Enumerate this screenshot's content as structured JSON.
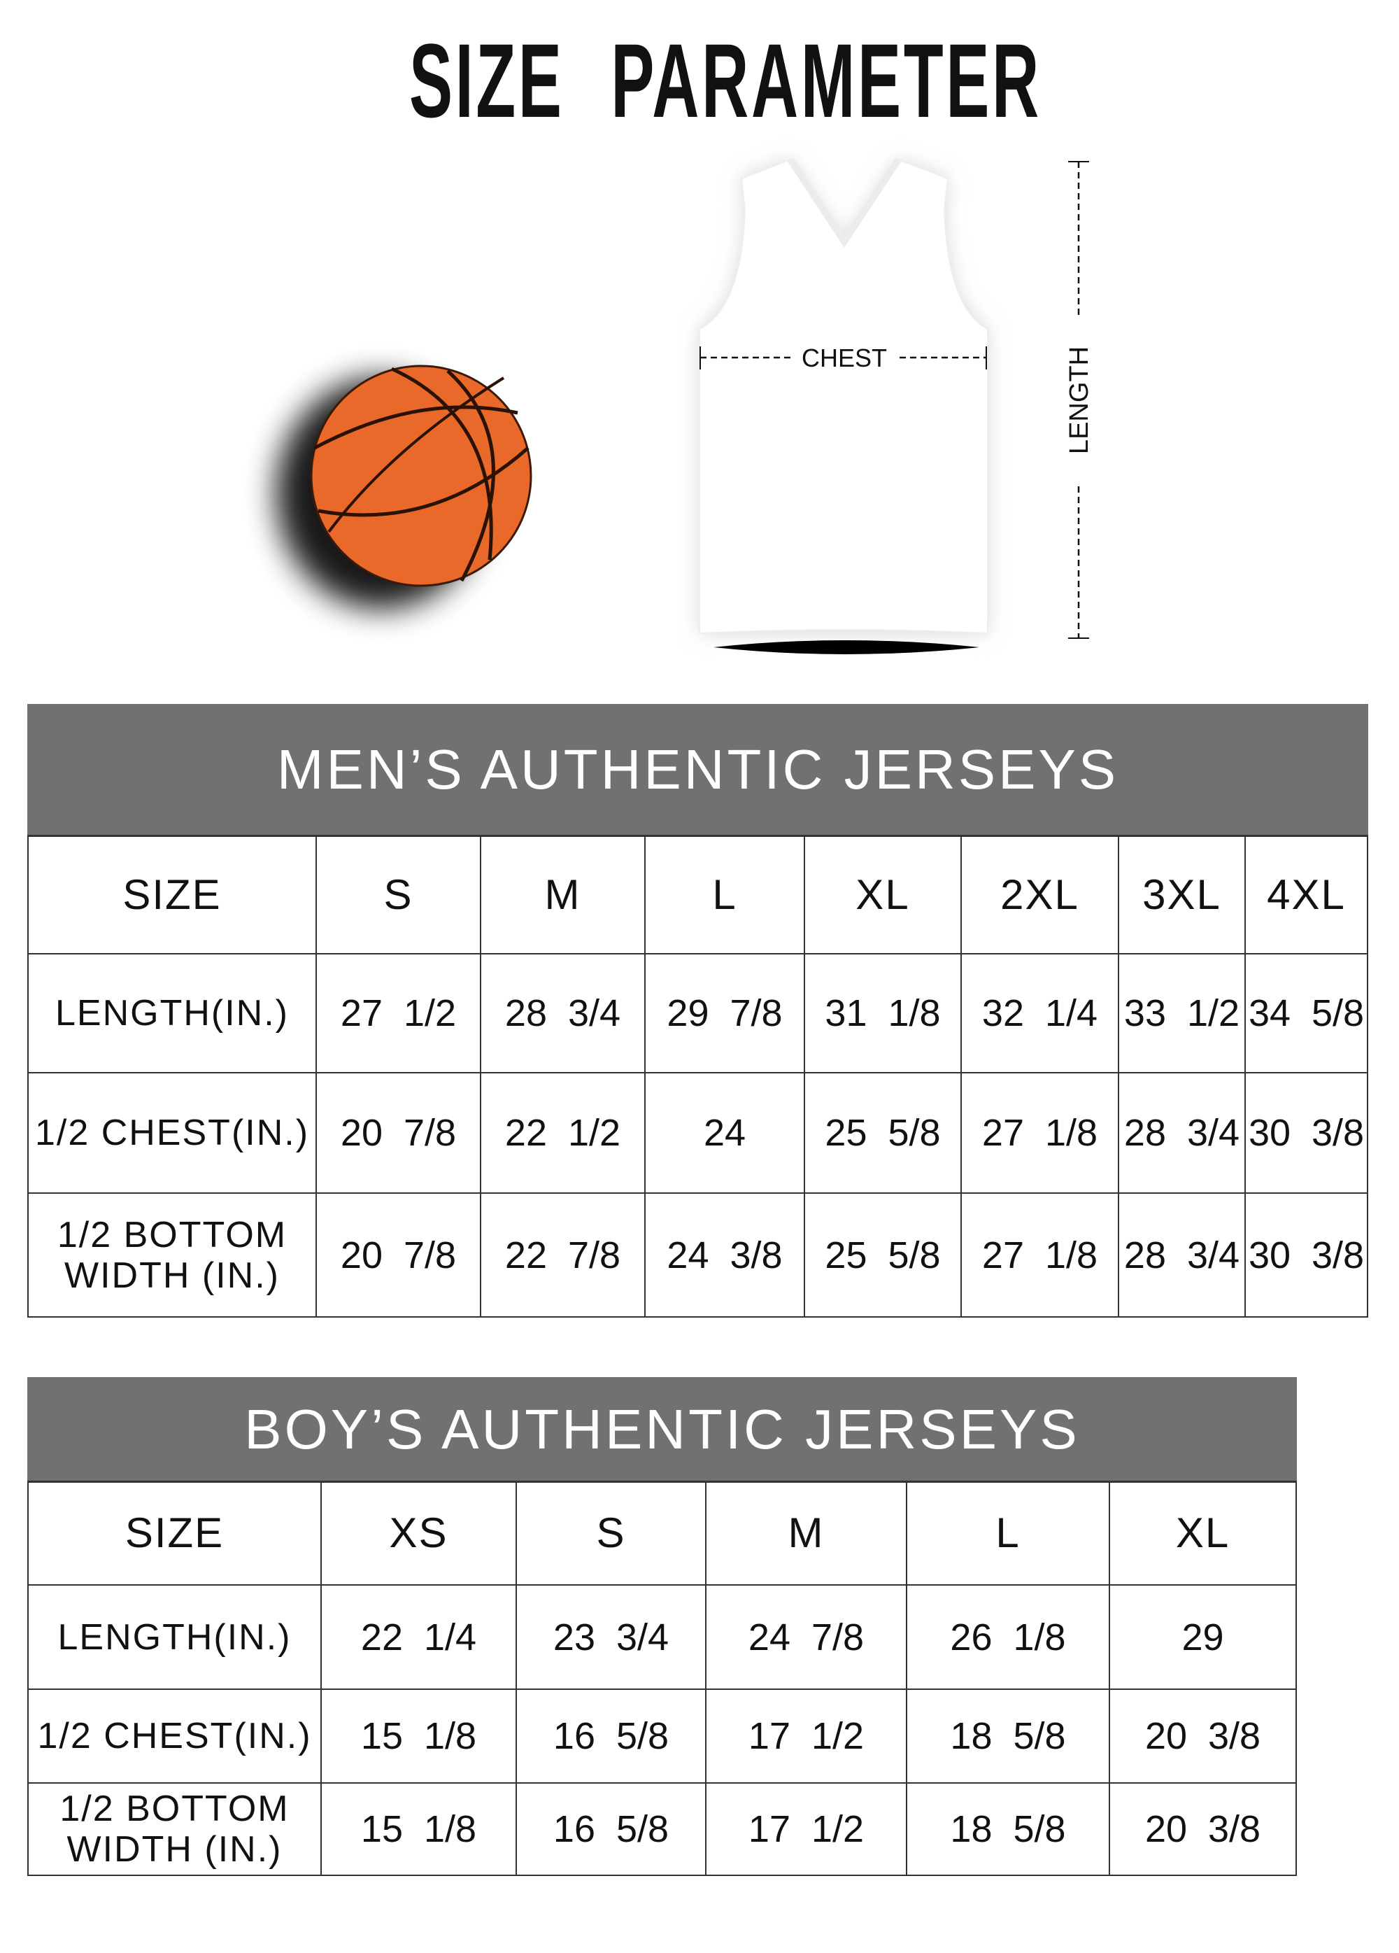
{
  "title": "SIZE PARAMETER",
  "diagram": {
    "chest_label": "CHEST",
    "length_label": "LENGTH"
  },
  "colors": {
    "header_bg": "#717171",
    "ball": "#e8692a"
  },
  "men": {
    "header": "MEN’S AUTHENTIC JERSEYS",
    "size_label": "SIZE",
    "sizes": [
      "S",
      "M",
      "L",
      "XL",
      "2XL",
      "3XL",
      "4XL"
    ],
    "rows": [
      {
        "label": "LENGTH(IN.)",
        "values": [
          "27  1/2",
          "28  3/4",
          "29  7/8",
          "31  1/8",
          "32  1/4",
          "33  1/2",
          "34  5/8"
        ]
      },
      {
        "label": "1/2 CHEST(IN.)",
        "values": [
          "20  7/8",
          "22  1/2",
          "24",
          "25  5/8",
          "27  1/8",
          "28  3/4",
          "30  3/8"
        ]
      },
      {
        "label": "1/2 BOTTOM WIDTH (IN.)",
        "values": [
          "20  7/8",
          "22  7/8",
          "24  3/8",
          "25  5/8",
          "27  1/8",
          "28  3/4",
          "30  3/8"
        ]
      }
    ]
  },
  "boy": {
    "header": "BOY’S AUTHENTIC JERSEYS",
    "size_label": "SIZE",
    "sizes": [
      "XS",
      "S",
      "M",
      "L",
      "XL"
    ],
    "rows": [
      {
        "label": "LENGTH(IN.)",
        "values": [
          "22  1/4",
          "23  3/4",
          "24  7/8",
          "26  1/8",
          "29"
        ]
      },
      {
        "label": "1/2 CHEST(IN.)",
        "values": [
          "15  1/8",
          "16  5/8",
          "17  1/2",
          "18  5/8",
          "20  3/8"
        ]
      },
      {
        "label": "1/2 BOTTOM WIDTH (IN.)",
        "values": [
          "15  1/8",
          "16  5/8",
          "17  1/2",
          "18  5/8",
          "20  3/8"
        ]
      }
    ]
  }
}
